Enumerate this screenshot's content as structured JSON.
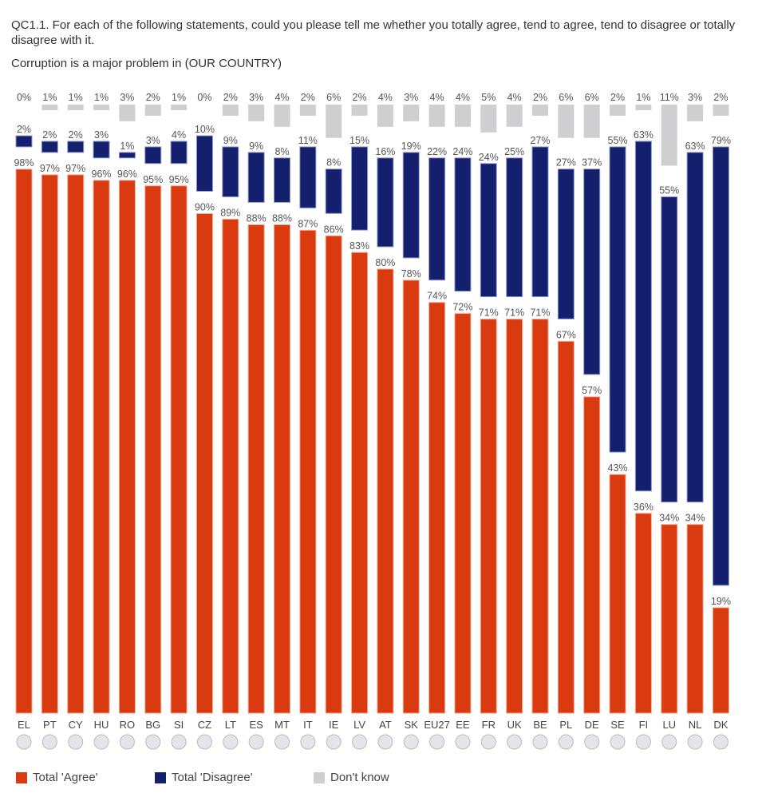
{
  "question": "QC1.1. For each of the following statements, could you please tell me whether you totally agree, tend to agree, tend to disagree or totally disagree with it.",
  "subtitle": "Corruption is a major problem in (OUR COUNTRY)",
  "colors": {
    "agree": "#d93a0f",
    "disagree": "#14206e",
    "dont_know": "#cfcfd1",
    "label": "#555555"
  },
  "legend": [
    {
      "key": "agree",
      "label": "Total 'Agree'"
    },
    {
      "key": "disagree",
      "label": "Total 'Disagree'"
    },
    {
      "key": "dont_know",
      "label": "Don't know"
    }
  ],
  "chart_data": {
    "type": "bar",
    "stacked": true,
    "title": "Corruption is a major problem in (OUR COUNTRY)",
    "xlabel": "",
    "ylabel": "",
    "ylim": [
      0,
      100
    ],
    "legend_position": "bottom-left",
    "categories": [
      "EL",
      "PT",
      "CY",
      "HU",
      "RO",
      "BG",
      "SI",
      "CZ",
      "LT",
      "ES",
      "MT",
      "IT",
      "IE",
      "LV",
      "AT",
      "SK",
      "EU27",
      "EE",
      "FR",
      "UK",
      "BE",
      "PL",
      "DE",
      "SE",
      "FI",
      "LU",
      "NL",
      "DK"
    ],
    "flags": [
      "greece-flag-icon",
      "portugal-flag-icon",
      "cyprus-flag-icon",
      "hungary-flag-icon",
      "romania-flag-icon",
      "bulgaria-flag-icon",
      "slovenia-flag-icon",
      "czech-flag-icon",
      "lithuania-flag-icon",
      "spain-flag-icon",
      "malta-flag-icon",
      "italy-flag-icon",
      "ireland-flag-icon",
      "latvia-flag-icon",
      "austria-flag-icon",
      "slovakia-flag-icon",
      "eu-flag-icon",
      "estonia-flag-icon",
      "france-flag-icon",
      "uk-flag-icon",
      "belgium-flag-icon",
      "poland-flag-icon",
      "germany-flag-icon",
      "sweden-flag-icon",
      "finland-flag-icon",
      "luxembourg-flag-icon",
      "netherlands-flag-icon",
      "denmark-flag-icon"
    ],
    "series": [
      {
        "name": "Total 'Agree'",
        "key": "agree",
        "values": [
          98,
          97,
          97,
          96,
          96,
          95,
          95,
          90,
          89,
          88,
          88,
          87,
          86,
          83,
          80,
          78,
          74,
          72,
          71,
          71,
          71,
          67,
          57,
          43,
          36,
          34,
          34,
          19
        ]
      },
      {
        "name": "Total 'Disagree'",
        "key": "disagree",
        "values": [
          2,
          2,
          2,
          3,
          1,
          3,
          4,
          10,
          9,
          9,
          8,
          11,
          8,
          15,
          16,
          19,
          22,
          24,
          24,
          25,
          27,
          27,
          37,
          55,
          63,
          55,
          63,
          79
        ]
      },
      {
        "name": "Don't know",
        "key": "dont_know",
        "values": [
          0,
          1,
          1,
          1,
          3,
          2,
          1,
          0,
          2,
          3,
          4,
          2,
          6,
          2,
          4,
          3,
          4,
          4,
          5,
          4,
          2,
          6,
          6,
          2,
          1,
          11,
          3,
          2
        ]
      }
    ]
  }
}
